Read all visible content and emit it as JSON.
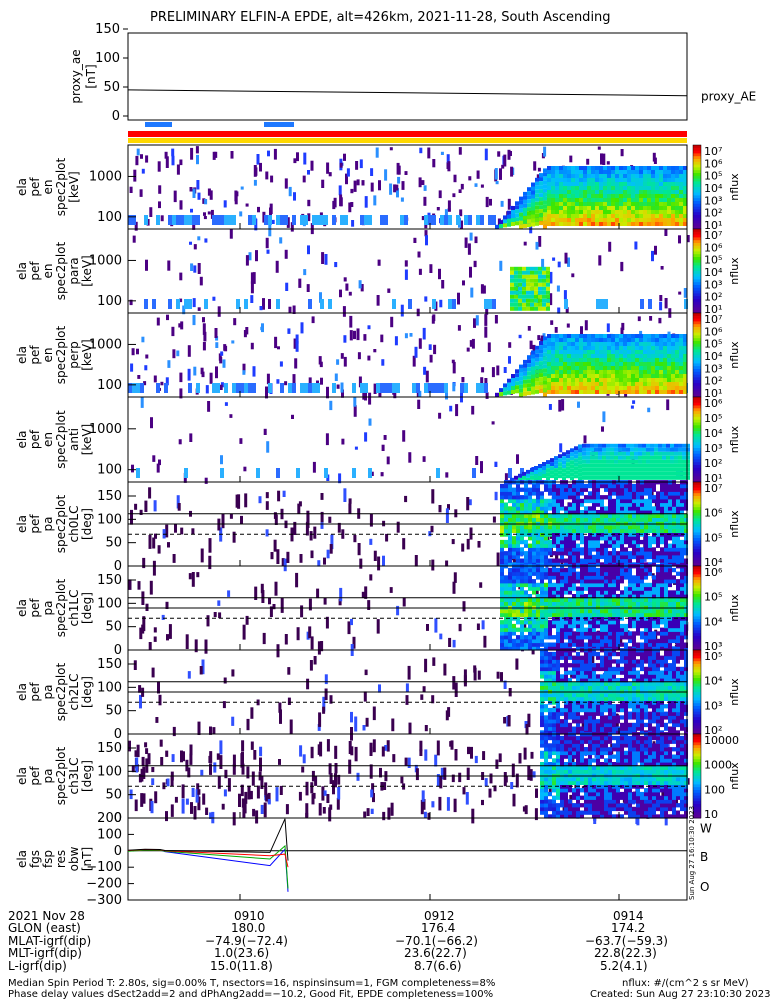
{
  "title": "PRELIMINARY ELFIN-A EPDE, alt=426km, 2021-11-28, South Ascending",
  "panels": [
    {
      "id": "proxy_ae",
      "ylabel": [
        "proxy_ae",
        "[nT]"
      ],
      "ticks": [
        "150",
        "100",
        "50",
        "0"
      ],
      "legend": "proxy_AE"
    },
    {
      "id": "en1",
      "ylabel": [
        "ela",
        "pef",
        "en",
        "spec2plot",
        "[keV]"
      ],
      "ticks": [
        "1000",
        "100"
      ],
      "cb_label": "nflux",
      "cb_ticks": [
        "10⁷",
        "10⁶",
        "10⁵",
        "10⁴",
        "10³",
        "10²",
        "10¹"
      ]
    },
    {
      "id": "en2",
      "ylabel": [
        "ela",
        "pef",
        "en",
        "spec2plot",
        "para",
        "[keV]"
      ],
      "ticks": [
        "1000",
        "100"
      ],
      "cb_label": "nflux",
      "cb_ticks": [
        "10⁷",
        "10⁶",
        "10⁵",
        "10⁴",
        "10³",
        "10²",
        "10¹"
      ]
    },
    {
      "id": "en3",
      "ylabel": [
        "ela",
        "pef",
        "en",
        "spec2plot",
        "perp",
        "[keV]"
      ],
      "ticks": [
        "1000",
        "100"
      ],
      "cb_label": "nflux",
      "cb_ticks": [
        "10⁷",
        "10⁶",
        "10⁵",
        "10⁴",
        "10³",
        "10²",
        "10¹"
      ]
    },
    {
      "id": "en4",
      "ylabel": [
        "ela",
        "pef",
        "en",
        "spec2plot",
        "anti",
        "[keV]"
      ],
      "ticks": [
        "1000",
        "100"
      ],
      "cb_label": "nflux",
      "cb_ticks": [
        "10⁶",
        "10⁵",
        "10⁴",
        "10³",
        "10²",
        "10¹"
      ]
    },
    {
      "id": "pa0",
      "ylabel": [
        "ela",
        "pef",
        "pa",
        "spec2plot",
        "ch0LC",
        "[deg]"
      ],
      "ticks": [
        "150",
        "100",
        "50",
        "0"
      ],
      "cb_label": "nflux",
      "cb_ticks": [
        "10⁷",
        "10⁶",
        "10⁵",
        "10⁴"
      ]
    },
    {
      "id": "pa1",
      "ylabel": [
        "ela",
        "pef",
        "pa",
        "spec2plot",
        "ch1LC",
        "[deg]"
      ],
      "ticks": [
        "150",
        "100",
        "50",
        "0"
      ],
      "cb_label": "nflux",
      "cb_ticks": [
        "10⁶",
        "10⁵",
        "10⁴",
        "10³"
      ]
    },
    {
      "id": "pa2",
      "ylabel": [
        "ela",
        "pef",
        "pa",
        "spec2plot",
        "ch2LC",
        "[deg]"
      ],
      "ticks": [
        "150",
        "100",
        "50",
        "0"
      ],
      "cb_label": "nflux",
      "cb_ticks": [
        "10⁵",
        "10⁴",
        "10³",
        "10²"
      ]
    },
    {
      "id": "pa3",
      "ylabel": [
        "ela",
        "pef",
        "pa",
        "spec2plot",
        "ch3LC",
        "[deg]"
      ],
      "ticks": [
        "150",
        "100",
        "50",
        "0"
      ],
      "cb_label": "nflux",
      "cb_ticks": [
        "10000",
        "1000",
        "100",
        "10"
      ]
    },
    {
      "id": "fgm",
      "ylabel": [
        "ela",
        "fgs",
        "fsp",
        "res",
        "obw",
        "[nT]"
      ],
      "ticks": [
        "200",
        "100",
        "0",
        "−100",
        "−200",
        "−300"
      ],
      "legend_w": "W",
      "legend_b": "B",
      "legend_o": "O"
    }
  ],
  "xaxis": {
    "ticks": [
      "0910",
      "0912",
      "0914"
    ],
    "rows": [
      {
        "label": "2021 Nov 28",
        "vals": [
          "",
          "",
          ""
        ]
      },
      {
        "label": "GLON (east)",
        "vals": [
          "180.0",
          "176.4",
          "174.2"
        ]
      },
      {
        "label": "MLAT-igrf(dip)",
        "vals": [
          "−74.9(−72.4)",
          "−70.1(−66.2)",
          "−63.7(−59.3)"
        ]
      },
      {
        "label": "MLT-igrf(dip)",
        "vals": [
          "1.0(23.6)",
          "23.6(22.7)",
          "22.8(22.3)"
        ]
      },
      {
        "label": "L-igrf(dip)",
        "vals": [
          "15.0(11.8)",
          "8.7(6.6)",
          "5.2(4.1)"
        ]
      }
    ]
  },
  "footer": {
    "line1": "Median Spin Period T: 2.80s, sig=0.00% T, nsectors=16, nspinsinsum=1, FGM completeness=8%",
    "line2": "Phase delay values dSect2add=2 and dPhAng2add=−10.2, Good Fit, EPDE completeness=100%",
    "units": "nflux: #/(cm^2 s sr MeV)",
    "created": "Created: Sun Aug 27 23:10:30 2023",
    "side_stamp": "Sun Aug 27 16:10:30 2023"
  },
  "chart_data": {
    "type": "spectrogram",
    "x_time_ticks": [
      "0910",
      "0912",
      "0914"
    ],
    "proxy_ae": {
      "ylim": [
        0,
        150
      ],
      "x": [
        "0908.5",
        "0914.8"
      ],
      "y": [
        45,
        35
      ]
    },
    "energy_panels_ylim_keV": [
      50,
      6000
    ],
    "pitch_panels_ylim_deg": [
      0,
      180
    ],
    "fgm_ylim_nT": [
      -300,
      200
    ],
    "colors": {
      "fgm_w": "#ff0000",
      "fgm_b": "#00aa00",
      "fgm_o": "#0000ff"
    }
  }
}
